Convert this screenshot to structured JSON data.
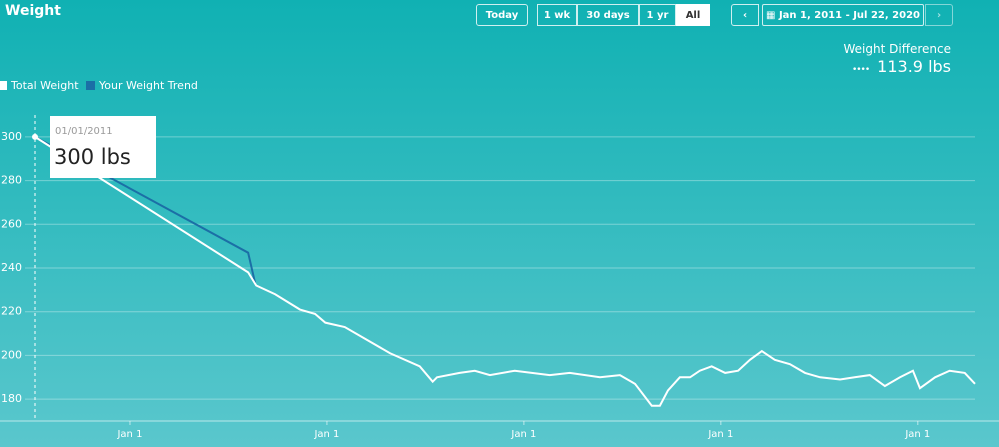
{
  "ui": {
    "title": "Weight",
    "buttons": [
      "Today",
      "1 wk",
      "30 days",
      "1 yr",
      "All"
    ],
    "active_button": 4,
    "date_range": "Jan 1, 2011 - Jul 22, 2020",
    "difference_label": "Weight Difference",
    "difference_value": "113.9 lbs",
    "tooltip": {
      "date": "01/01/2011",
      "value": "300 lbs"
    }
  },
  "chart_data": {
    "type": "line",
    "series": [
      {
        "name": "Total Weight",
        "color": "#ffffff",
        "x": [
          0,
          395,
          410,
          445,
          491,
          519,
          538,
          574,
          658,
          713,
          737,
          745,
          787,
          815,
          843,
          889,
          954,
          991,
          1047,
          1084,
          1112,
          1143,
          1158,
          1173,
          1195,
          1214,
          1232,
          1254,
          1279,
          1303,
          1325,
          1347,
          1371,
          1399,
          1427,
          1455,
          1492,
          1519,
          1547,
          1575,
          1603,
          1627,
          1640,
          1668,
          1695,
          1723,
          1742
        ],
        "values": [
          300,
          238,
          232,
          228,
          221,
          219,
          215,
          213,
          201,
          195,
          188,
          190,
          192,
          193,
          191,
          193,
          191,
          192,
          190,
          191,
          187,
          177,
          177,
          184,
          190,
          190,
          193,
          195,
          192,
          193,
          198,
          202,
          198,
          196,
          192,
          190,
          189,
          190,
          191,
          186,
          190,
          193,
          185,
          190,
          193,
          192,
          187
        ]
      },
      {
        "name": "Your Weight Trend",
        "color": "#1b6fa6",
        "x": [
          0,
          395,
          408
        ],
        "values": [
          300,
          247,
          233
        ]
      }
    ],
    "xlim": [
      0,
      1742
    ],
    "xticks": [
      {
        "value": 176,
        "label": "Jan 1"
      },
      {
        "value": 541,
        "label": "Jan 1"
      },
      {
        "value": 906,
        "label": "Jan 1"
      },
      {
        "value": 1271,
        "label": "Jan 1"
      },
      {
        "value": 1636,
        "label": "Jan 1"
      }
    ],
    "ylim": [
      170,
      310
    ],
    "yticks": [
      180,
      200,
      220,
      240,
      260,
      280,
      300
    ],
    "grid": true
  }
}
